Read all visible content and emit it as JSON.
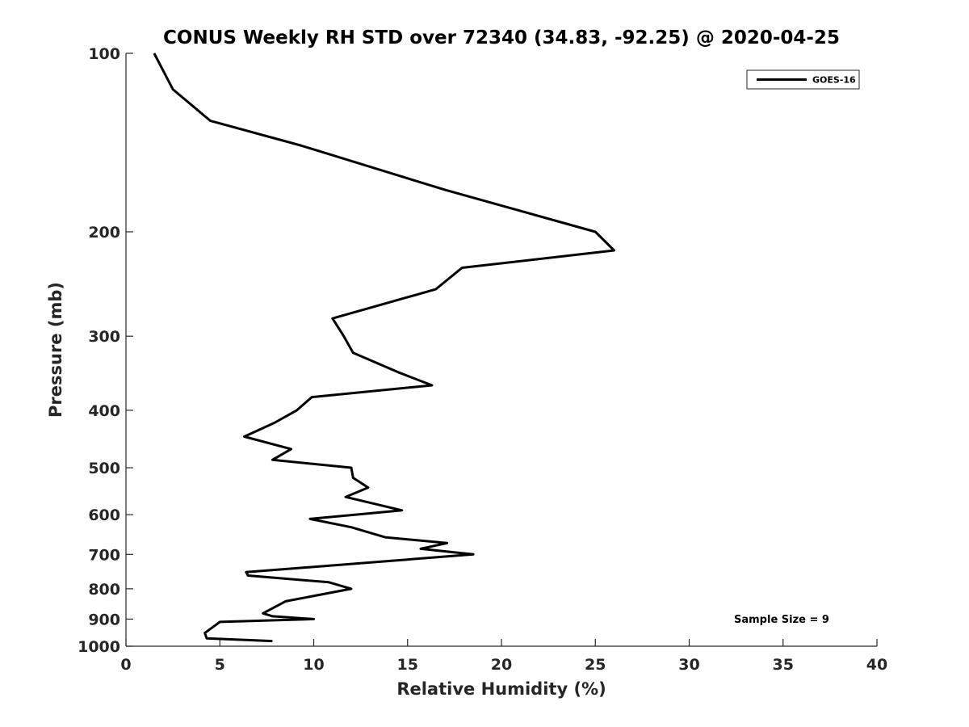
{
  "chart_data": {
    "type": "line",
    "title": "CONUS Weekly RH STD over 72340 (34.83, -92.25) @ 2020-04-25",
    "xlabel": "Relative Humidity (%)",
    "ylabel": "Pressure (mb)",
    "xlim": [
      0,
      40
    ],
    "ylim": [
      1000,
      100
    ],
    "y_scale": "log",
    "y_reversed": true,
    "grid": false,
    "x_ticks": [
      0,
      5,
      10,
      15,
      20,
      25,
      30,
      35,
      40
    ],
    "x_tick_labels": [
      "0",
      "5",
      "10",
      "15",
      "20",
      "25",
      "30",
      "35",
      "40"
    ],
    "y_ticks": [
      100,
      200,
      300,
      400,
      500,
      600,
      700,
      800,
      900,
      1000
    ],
    "y_tick_labels": [
      "100",
      "200",
      "300",
      "400",
      "500",
      "600",
      "700",
      "800",
      "900",
      "1000"
    ],
    "legend": {
      "position": "top-right",
      "entries": [
        "GOES-16"
      ]
    },
    "annotation": "Sample Size = 9",
    "series": [
      {
        "name": "GOES-16",
        "color": "#000000",
        "x": [
          1.5,
          2.5,
          4.5,
          9.3,
          17.0,
          25.0,
          26.0,
          17.9,
          16.5,
          11.0,
          11.6,
          12.1,
          14.5,
          16.3,
          9.9,
          9.1,
          7.9,
          6.3,
          8.8,
          7.8,
          12.0,
          12.1,
          12.9,
          11.7,
          14.7,
          9.8,
          12.0,
          13.8,
          17.1,
          15.7,
          18.5,
          6.4,
          6.5,
          10.8,
          12.0,
          8.5,
          7.3,
          7.8,
          10.0,
          5.0,
          4.2,
          4.3,
          7.8
        ],
        "y": [
          100,
          115,
          130,
          143,
          170,
          200,
          215,
          230,
          250,
          280,
          300,
          320,
          345,
          363,
          380,
          400,
          420,
          443,
          465,
          485,
          500,
          520,
          540,
          560,
          590,
          610,
          630,
          655,
          670,
          685,
          700,
          750,
          760,
          780,
          800,
          840,
          880,
          890,
          900,
          910,
          950,
          970,
          980
        ]
      }
    ]
  }
}
